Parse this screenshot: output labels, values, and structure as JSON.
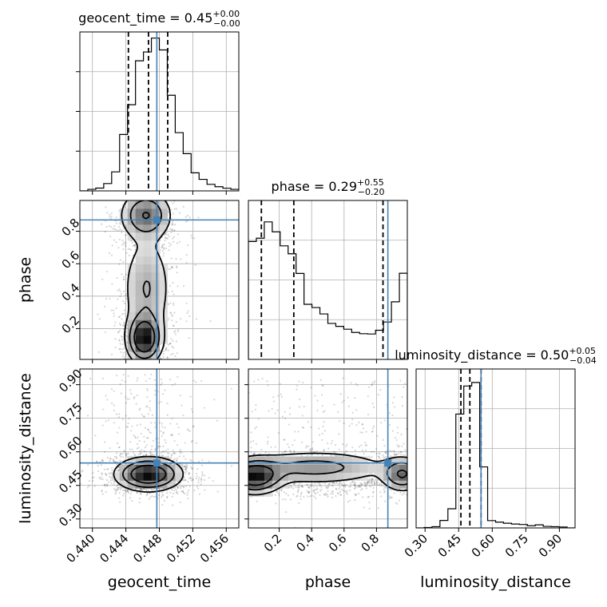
{
  "chart_data": {
    "type": "corner",
    "grid": true,
    "parameters": [
      {
        "name": "geocent_time",
        "range": [
          0.4385,
          0.4575
        ],
        "ticks": [
          0.44,
          0.444,
          0.448,
          0.452,
          0.456
        ],
        "tick_labels": [
          "0.440",
          "0.444",
          "0.448",
          "0.452",
          "0.456"
        ],
        "truth": 0.4477,
        "quantiles": [
          0.4443,
          0.4467,
          0.449
        ],
        "title": {
          "base": "geocent_time = 0.45",
          "plus": "+0.00",
          "minus": "−0.00"
        },
        "histogram": [
          0.0,
          0.01,
          0.018,
          0.047,
          0.122,
          0.362,
          0.553,
          0.835,
          0.892,
          0.981,
          0.905,
          0.614,
          0.374,
          0.239,
          0.116,
          0.074,
          0.042,
          0.027,
          0.017,
          0.01
        ]
      },
      {
        "name": "phase",
        "range": [
          0.01,
          0.99
        ],
        "ticks": [
          0.2,
          0.4,
          0.6,
          0.8
        ],
        "tick_labels": [
          "0.2",
          "0.4",
          "0.6",
          "0.8"
        ],
        "truth": 0.87,
        "quantiles": [
          0.09,
          0.29,
          0.84
        ],
        "title": {
          "base": "phase = 0.29",
          "plus": "+0.55",
          "minus": "−0.20"
        },
        "histogram": [
          0.757,
          0.778,
          0.883,
          0.819,
          0.729,
          0.678,
          0.552,
          0.354,
          0.333,
          0.292,
          0.231,
          0.212,
          0.194,
          0.173,
          0.165,
          0.163,
          0.187,
          0.24,
          0.37,
          0.553
        ]
      },
      {
        "name": "luminosity_distance",
        "range": [
          0.26,
          0.97
        ],
        "ticks": [
          0.3,
          0.45,
          0.6,
          0.75,
          0.9
        ],
        "tick_labels": [
          "0.30",
          "0.45",
          "0.60",
          "0.75",
          "0.90"
        ],
        "truth": 0.55,
        "quantiles": [
          0.46,
          0.5,
          0.55
        ],
        "title": {
          "base": "luminosity_distance = 0.50",
          "plus": "+0.05",
          "minus": "−0.04"
        },
        "histogram": [
          0.0,
          0.003,
          0.008,
          0.048,
          0.123,
          0.731,
          0.911,
          0.934,
          0.392,
          0.047,
          0.037,
          0.03,
          0.025,
          0.022,
          0.014,
          0.02,
          0.01,
          0.008,
          0.006,
          0.0
        ]
      }
    ],
    "truth_color": "#4682b4",
    "hist_color": "#000000",
    "density_color": "#000000"
  }
}
